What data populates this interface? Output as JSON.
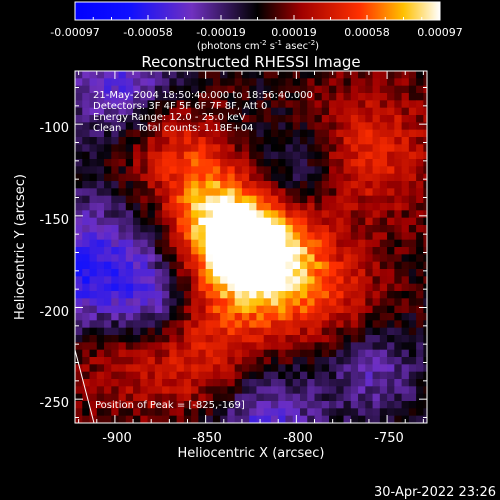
{
  "chart_data": {
    "type": "heatmap",
    "title": "Reconstructed RHESSI Image",
    "xlabel": "Heliocentric X (arcsec)",
    "ylabel": "Heliocentric Y (arcsec)",
    "xlim": [
      -922,
      -728
    ],
    "ylim": [
      -263,
      -71
    ],
    "xticks": [
      -900,
      -850,
      -800,
      -750
    ],
    "yticks": [
      -100,
      -150,
      -200,
      -250
    ],
    "colorbar": {
      "range": [
        -0.00097,
        0.00097
      ],
      "ticks": [
        "-0.00097",
        "-0.00058",
        "-0.00019",
        "0.00019",
        "0.00058",
        "0.00097"
      ],
      "units_main": "(photons cm",
      "units_exp1": "-2",
      "units_mid1": " s",
      "units_exp2": "-1",
      "units_mid2": " asec",
      "units_exp3": "-2",
      "units_end": ")"
    },
    "peak": {
      "x": -825,
      "y": -169
    },
    "peak_label": "Position of Peak = [-825,-169]"
  },
  "annotations": {
    "line1": "21-May-2004 18:50:40.000 to 18:56:40.000",
    "line2": "Detectors: 3F 4F 5F 6F 7F 8F, Att 0",
    "line3": "Energy Range: 12.0 - 25.0 keV",
    "line4": "Clean     Total counts: 1.18E+04"
  },
  "footer": {
    "timestamp": "30-Apr-2022 23:26"
  },
  "colors": {
    "background": "#000000",
    "foreground": "#ffffff"
  }
}
